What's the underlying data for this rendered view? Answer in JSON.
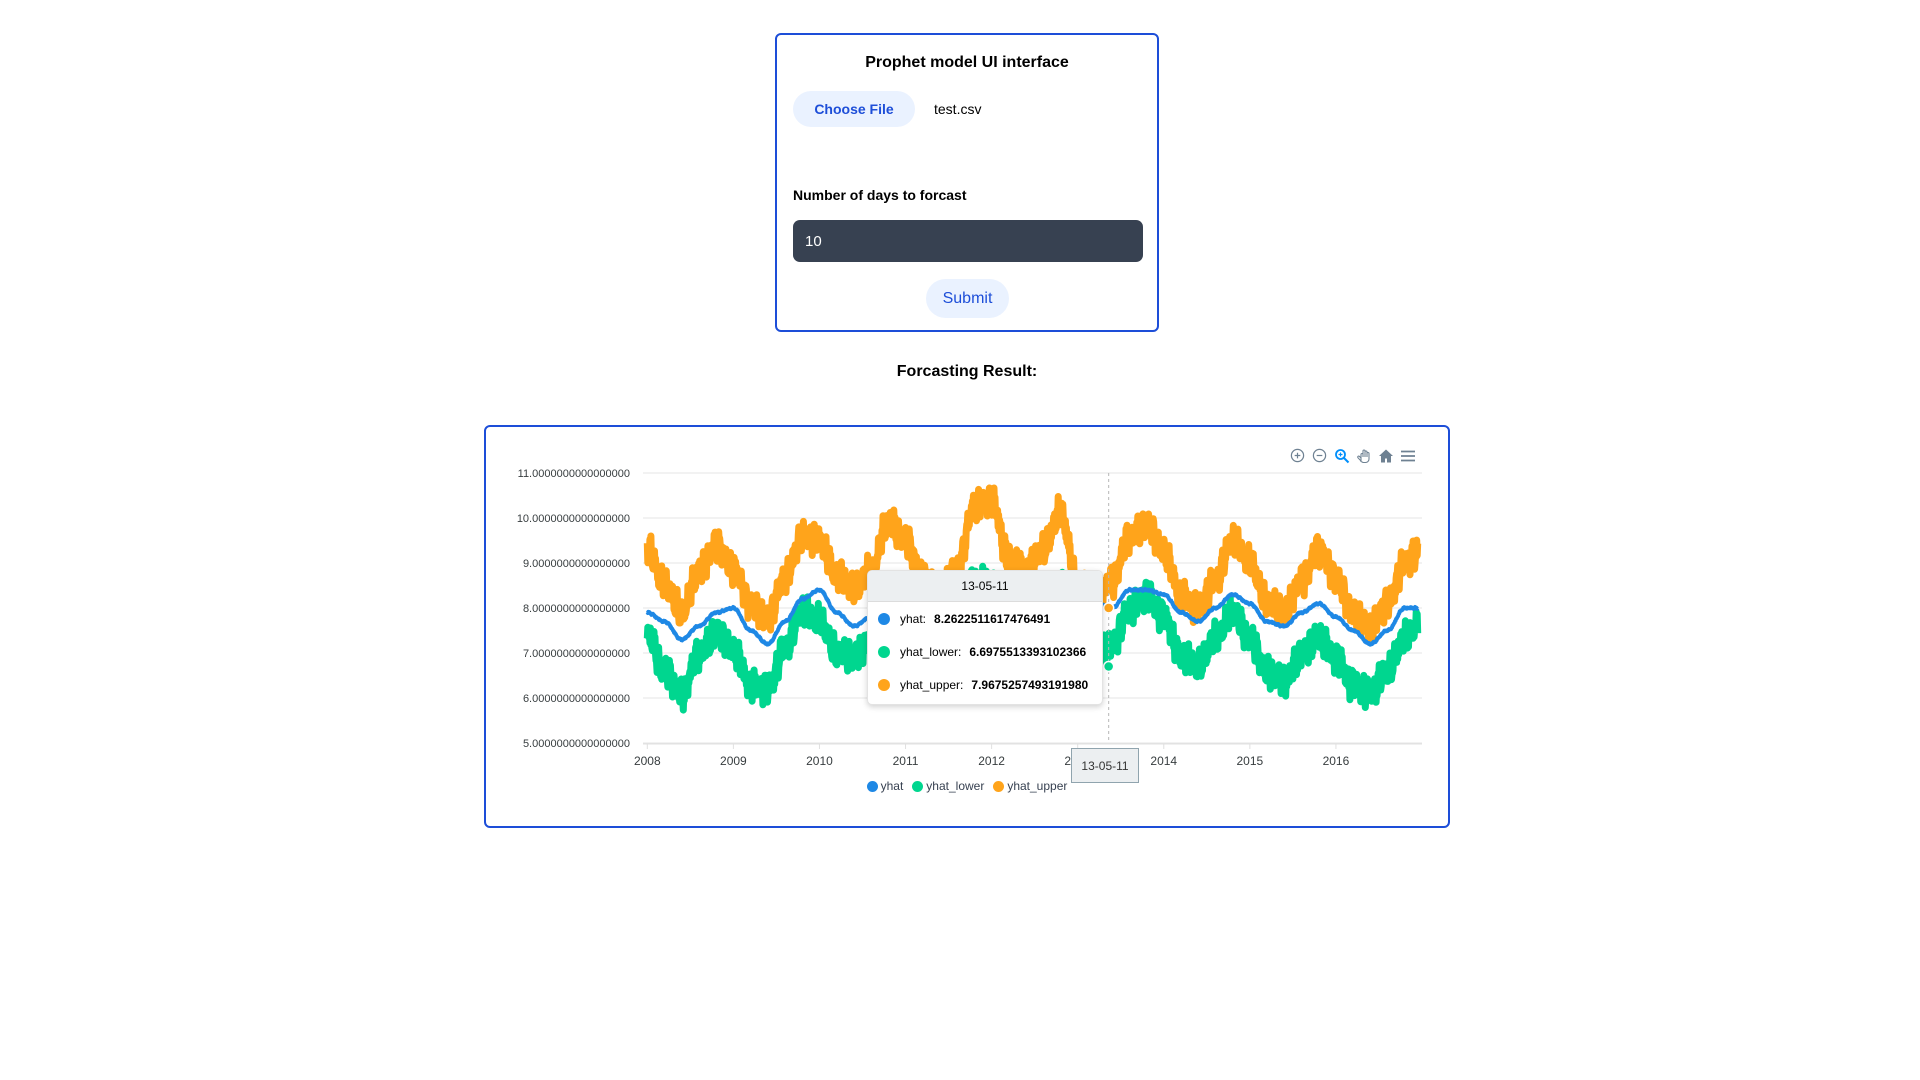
{
  "form": {
    "title": "Prophet model UI interface",
    "choose_file_label": "Choose File",
    "file_name": "test.csv",
    "days_label": "Number of days to forcast",
    "days_value": "10",
    "submit_label": "Submit"
  },
  "result_title": "Forcasting Result:",
  "toolbar": {
    "icons": [
      "zoom-in-icon",
      "zoom-out-icon",
      "zoom-selection-icon",
      "pan-hand-icon",
      "home-reset-icon",
      "menu-icon"
    ],
    "active_icon": "zoom-selection-icon"
  },
  "tooltip": {
    "date": "13-05-11",
    "rows": [
      {
        "label": "yhat:",
        "value": "8.2622511617476491"
      },
      {
        "label": "yhat_lower:",
        "value": "6.6975513393102366"
      },
      {
        "label": "yhat_upper:",
        "value": "7.9675257493191980"
      }
    ]
  },
  "xaxis_hover_label": "13-05-11",
  "colors": {
    "accent": "#1d4ed8",
    "yhat": "#1e88e5",
    "yhat_lower": "#00d68f",
    "yhat_upper": "#ffa41b",
    "input_bg": "#374151",
    "button_bg": "#eaf2ff"
  },
  "chart_data": {
    "type": "line",
    "x_tick_labels": [
      "2008",
      "2009",
      "2010",
      "2011",
      "2012",
      "2013",
      "2014",
      "2015",
      "2016"
    ],
    "y_tick_labels": [
      "5.0000000000000000",
      "6.0000000000000000",
      "7.0000000000000000",
      "8.0000000000000000",
      "9.0000000000000000",
      "10.0000000000000000",
      "11.0000000000000000"
    ],
    "ylim": [
      5,
      11
    ],
    "xlim": [
      "2008-01-01",
      "2016-12-31"
    ],
    "grid": true,
    "legend_position": "bottom-center",
    "series": [
      {
        "name": "yhat",
        "color": "#1e88e5"
      },
      {
        "name": "yhat_lower",
        "color": "#00d68f"
      },
      {
        "name": "yhat_upper",
        "color": "#ffa41b"
      }
    ],
    "x": [
      2008.0,
      2008.2,
      2008.4,
      2008.6,
      2008.8,
      2009.0,
      2009.2,
      2009.4,
      2009.6,
      2009.8,
      2010.0,
      2010.2,
      2010.4,
      2010.6,
      2010.8,
      2011.0,
      2011.2,
      2011.4,
      2011.6,
      2011.8,
      2012.0,
      2012.2,
      2012.4,
      2012.6,
      2012.8,
      2013.0,
      2013.2,
      2013.4,
      2013.6,
      2013.8,
      2014.0,
      2014.2,
      2014.4,
      2014.6,
      2014.8,
      2015.0,
      2015.2,
      2015.4,
      2015.6,
      2015.8,
      2016.0,
      2016.2,
      2016.4,
      2016.6,
      2016.8,
      2016.95
    ],
    "yhat": [
      7.9,
      7.7,
      7.3,
      7.6,
      7.9,
      8.0,
      7.5,
      7.2,
      7.7,
      8.2,
      8.4,
      7.9,
      7.6,
      7.8,
      8.3,
      8.4,
      8.0,
      7.7,
      8.0,
      8.6,
      8.7,
      8.2,
      7.9,
      8.2,
      8.6,
      8.5,
      8.1,
      8.0,
      8.4,
      8.4,
      8.3,
      7.9,
      7.7,
      8.0,
      8.3,
      8.1,
      7.7,
      7.6,
      7.9,
      8.1,
      7.8,
      7.5,
      7.2,
      7.5,
      8.0,
      8.0
    ],
    "yhat_lower": [
      7.4,
      6.6,
      6.1,
      7.0,
      7.5,
      7.1,
      6.3,
      6.2,
      7.1,
      7.9,
      7.7,
      7.0,
      6.9,
      7.3,
      8.2,
      8.0,
      7.2,
      6.9,
      7.5,
      8.6,
      8.5,
      7.5,
      7.3,
      7.7,
      8.5,
      7.4,
      7.0,
      7.2,
      8.0,
      8.3,
      7.8,
      6.9,
      6.7,
      7.3,
      7.9,
      7.3,
      6.6,
      6.4,
      7.0,
      7.4,
      6.9,
      6.3,
      6.1,
      6.6,
      7.3,
      7.6
    ],
    "yhat_upper": [
      9.3,
      8.5,
      7.9,
      8.8,
      9.4,
      8.9,
      8.1,
      7.8,
      8.7,
      9.6,
      9.5,
      8.7,
      8.4,
      8.8,
      9.9,
      9.5,
      8.7,
      8.4,
      8.9,
      10.3,
      10.4,
      9.1,
      8.8,
      9.3,
      10.1,
      8.5,
      8.2,
      8.6,
      9.6,
      9.9,
      9.3,
      8.3,
      8.0,
      8.6,
      9.5,
      9.0,
      8.1,
      7.9,
      8.6,
      9.3,
      8.7,
      7.9,
      7.6,
      8.1,
      9.0,
      9.2
    ],
    "hover_x": 2013.36
  }
}
